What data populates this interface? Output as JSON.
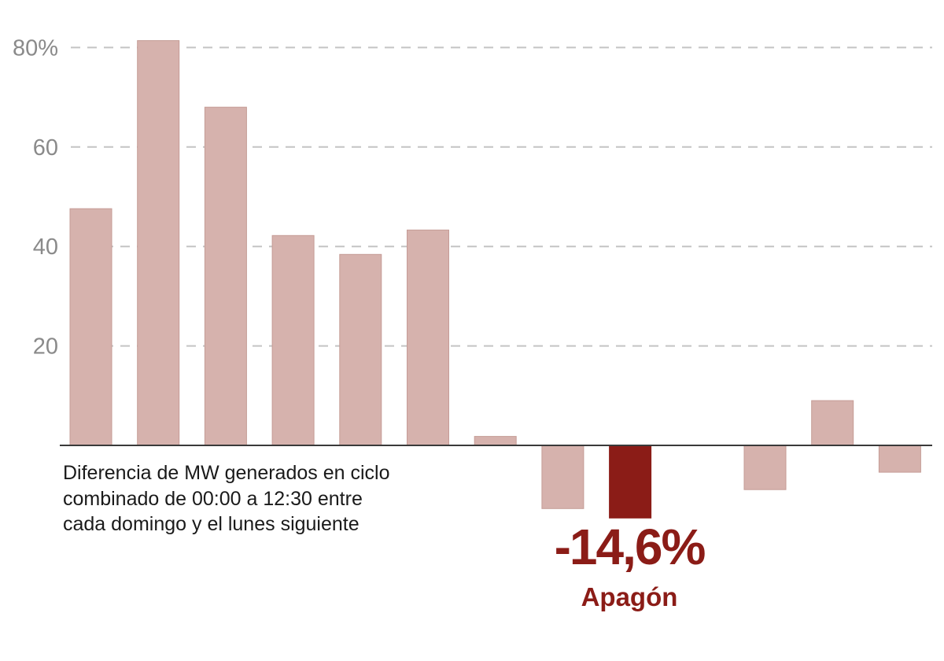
{
  "chart_data": {
    "type": "bar",
    "title": "",
    "xlabel": "",
    "ylabel": "",
    "ylim": [
      -20,
      85
    ],
    "y_ticks": [
      {
        "value": 80,
        "label": "80%"
      },
      {
        "value": 60,
        "label": "60"
      },
      {
        "value": 40,
        "label": "40"
      },
      {
        "value": 20,
        "label": "20"
      }
    ],
    "grid": true,
    "values": [
      47.6,
      81.4,
      68.0,
      42.2,
      38.4,
      43.3,
      1.8,
      -12.7,
      -14.6,
      null,
      -8.9,
      9.0,
      -5.4
    ],
    "highlight_index": 8,
    "colors": {
      "bar": "#d6b2ad",
      "bar_stroke": "#c59c96",
      "highlight": "#8b1c17",
      "highlight_text": "#8b1c17",
      "baseline": "#3a3a3a",
      "grid": "#c4c4c4",
      "tick_text": "#8a8a8a"
    },
    "annotation_lines": [
      "Diferencia de MW generados en ciclo",
      "combinado de 00:00 a 12:30 entre",
      "cada domingo y el lunes siguiente"
    ],
    "highlight_value_label": "-14,6%",
    "highlight_label": "Apagón"
  }
}
